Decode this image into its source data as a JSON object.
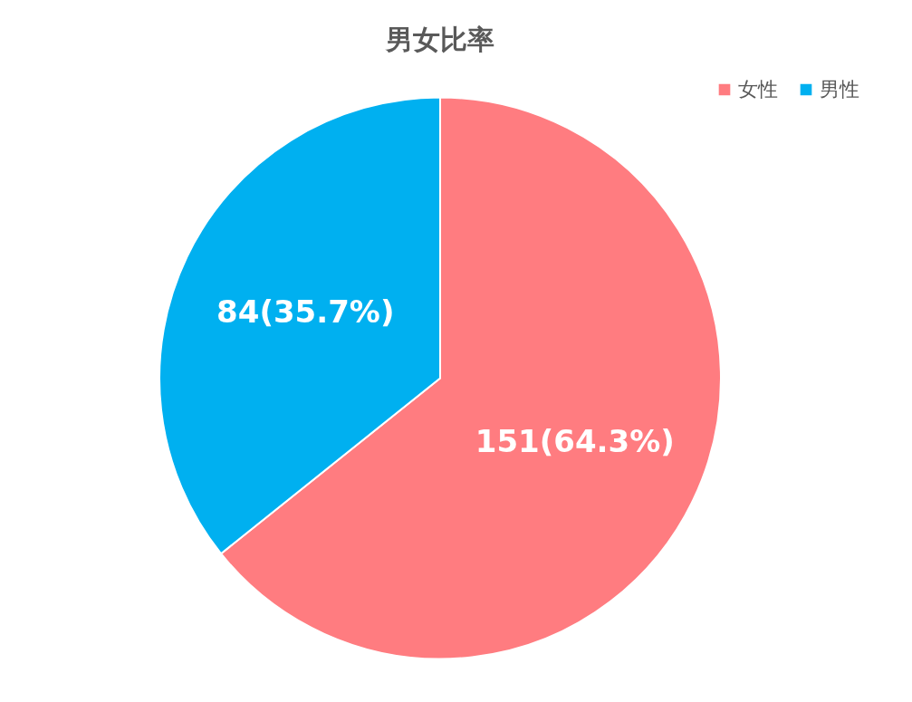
{
  "chart_data": {
    "type": "pie",
    "title": "男女比率",
    "categories": [
      "女性",
      "男性"
    ],
    "values": [
      151,
      84
    ],
    "colors": [
      "#ff7c80",
      "#00b0f0"
    ],
    "value_labels": [
      "151(64.3%)",
      "84(35.7%)"
    ],
    "legend": "top right"
  }
}
